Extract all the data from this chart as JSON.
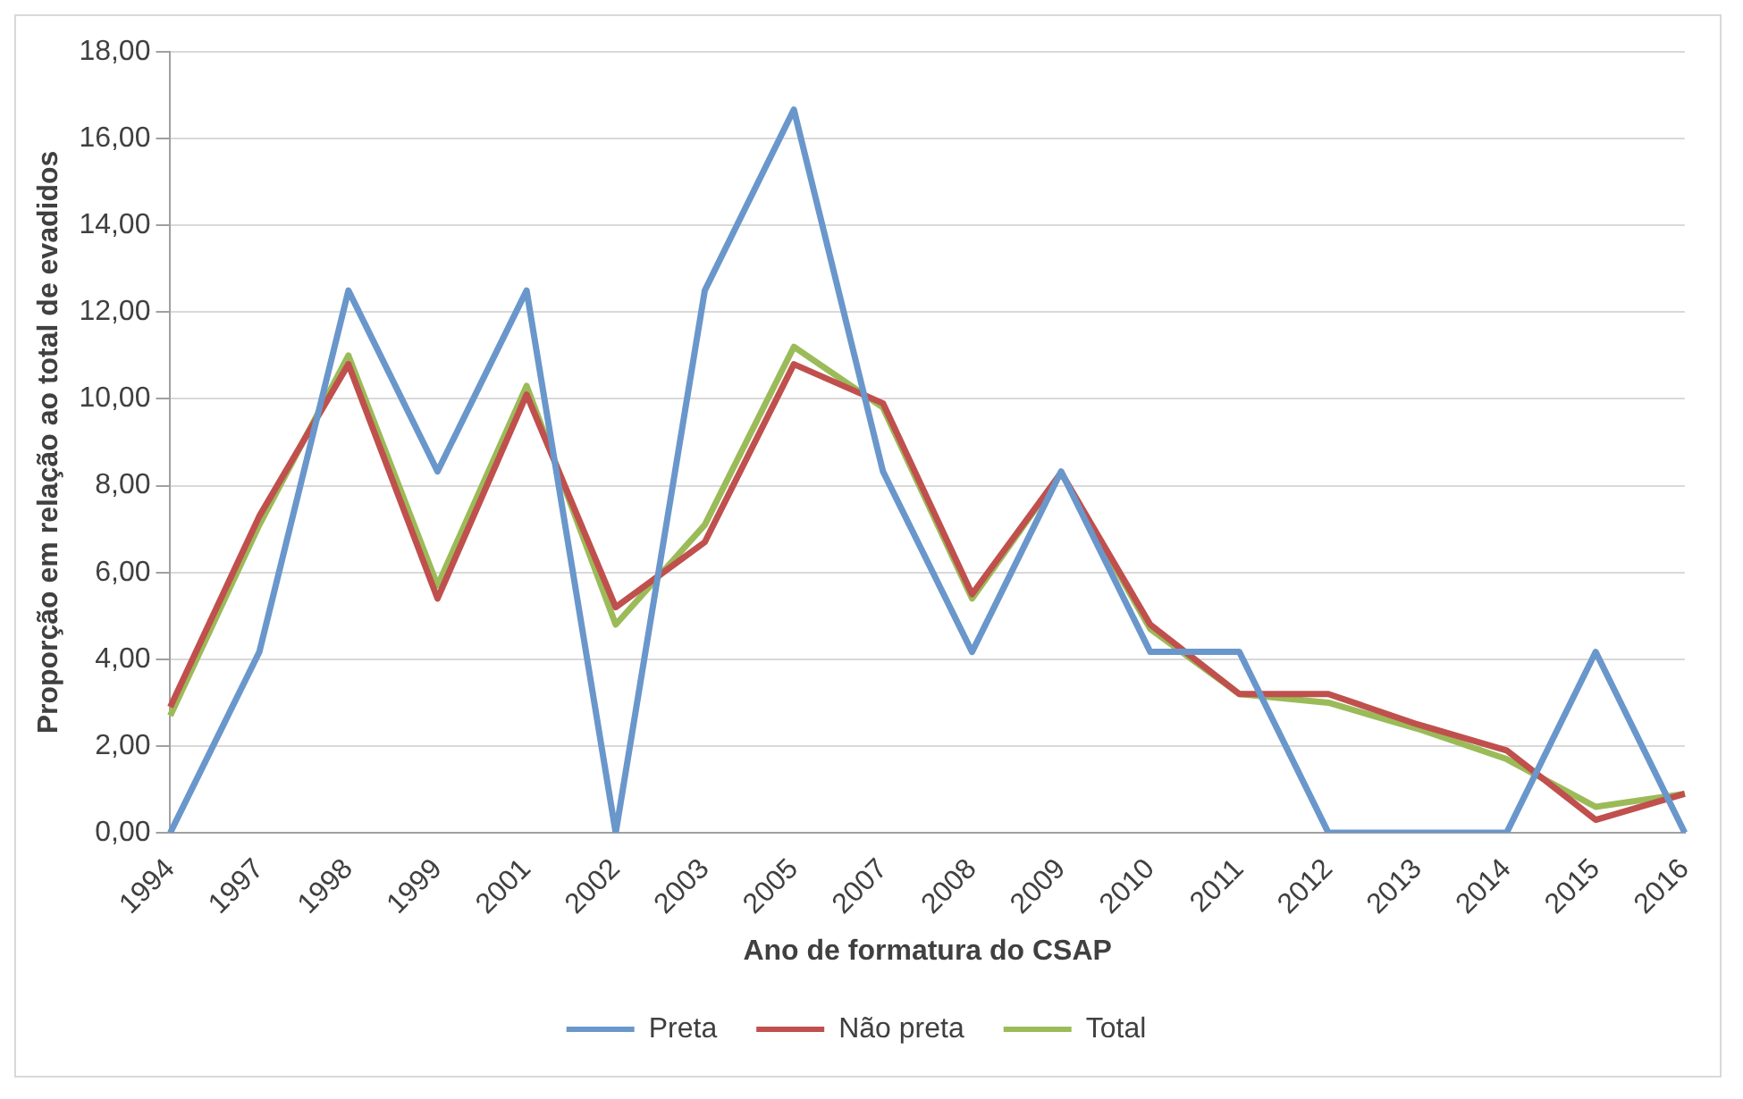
{
  "chart_data": {
    "type": "line",
    "xlabel": "Ano de formatura do CSAP",
    "ylabel": "Proporção em relação ao total de evadidos",
    "categories": [
      "1994",
      "1997",
      "1998",
      "1999",
      "2001",
      "2002",
      "2003",
      "2005",
      "2007",
      "2008",
      "2009",
      "2010",
      "2011",
      "2012",
      "2013",
      "2014",
      "2015",
      "2016"
    ],
    "series": [
      {
        "name": "Preta",
        "color": "#6a97cb",
        "values": [
          0,
          4.17,
          12.5,
          8.33,
          12.5,
          0,
          12.5,
          16.67,
          8.33,
          4.17,
          8.33,
          4.17,
          4.17,
          0,
          0,
          0,
          4.17,
          0
        ]
      },
      {
        "name": "Não preta",
        "color": "#c0504d",
        "values": [
          2.9,
          7.3,
          10.8,
          5.4,
          10.1,
          5.2,
          6.7,
          10.8,
          9.9,
          5.5,
          8.3,
          4.8,
          3.2,
          3.2,
          2.5,
          1.9,
          0.3,
          0.9
        ]
      },
      {
        "name": "Total",
        "color": "#9bbb59",
        "values": [
          2.7,
          7.1,
          11.0,
          5.7,
          10.3,
          4.8,
          7.1,
          11.2,
          9.8,
          5.4,
          8.3,
          4.7,
          3.2,
          3.0,
          2.4,
          1.7,
          0.6,
          0.9
        ]
      }
    ],
    "ylim": [
      0,
      18
    ],
    "yticks": [
      {
        "value": 0,
        "label": "0,00"
      },
      {
        "value": 2,
        "label": "2,00"
      },
      {
        "value": 4,
        "label": "4,00"
      },
      {
        "value": 6,
        "label": "6,00"
      },
      {
        "value": 8,
        "label": "8,00"
      },
      {
        "value": 10,
        "label": "10,00"
      },
      {
        "value": 12,
        "label": "12,00"
      },
      {
        "value": 14,
        "label": "14,00"
      },
      {
        "value": 16,
        "label": "16,00"
      },
      {
        "value": 18,
        "label": "18,00"
      }
    ],
    "grid": "y",
    "legend": "bottom",
    "marker": "none",
    "line_style": "solid"
  }
}
